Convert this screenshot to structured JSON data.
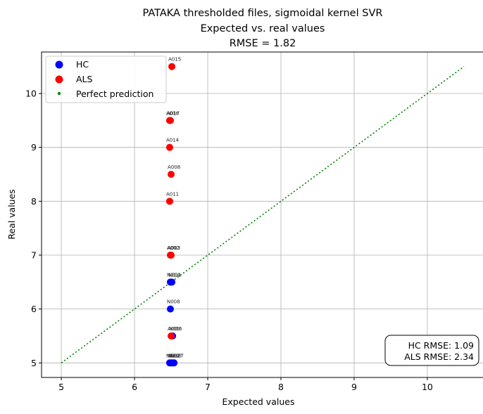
{
  "chart_data": {
    "type": "scatter",
    "title": [
      "PATAKA thresholded files, sigmoidal kernel SVR",
      "Expected vs. real values",
      "RMSE = 1.82"
    ],
    "xlabel": "Expected values",
    "ylabel": "Real values",
    "xlim": [
      4.73,
      10.77
    ],
    "ylim": [
      4.73,
      10.77
    ],
    "xticks": [
      5,
      6,
      7,
      8,
      9,
      10
    ],
    "yticks": [
      5,
      6,
      7,
      8,
      9,
      10
    ],
    "grid": true,
    "legend_position": "top-left",
    "series": [
      {
        "name": "HC",
        "color": "#0000ff",
        "points": [
          {
            "x": 6.51,
            "y": 6.5,
            "label": "N011"
          },
          {
            "x": 6.49,
            "y": 6.5,
            "label": "N014"
          },
          {
            "x": 6.49,
            "y": 6.0,
            "label": "N008"
          },
          {
            "x": 6.52,
            "y": 5.5,
            "label": "N016"
          },
          {
            "x": 6.5,
            "y": 5.0,
            "label": "N002"
          },
          {
            "x": 6.52,
            "y": 5.0,
            "label": "N007"
          },
          {
            "x": 6.48,
            "y": 5.0,
            "label": "N012"
          },
          {
            "x": 6.54,
            "y": 5.0,
            "label": "N017"
          }
        ]
      },
      {
        "name": "ALS",
        "color": "#ff0000",
        "points": [
          {
            "x": 6.51,
            "y": 10.5,
            "label": "A015"
          },
          {
            "x": 6.48,
            "y": 9.5,
            "label": "A016"
          },
          {
            "x": 6.49,
            "y": 9.5,
            "label": "A017"
          },
          {
            "x": 6.48,
            "y": 9.0,
            "label": "A014"
          },
          {
            "x": 6.5,
            "y": 8.5,
            "label": "A008"
          },
          {
            "x": 6.48,
            "y": 8.0,
            "label": "A011"
          },
          {
            "x": 6.49,
            "y": 7.0,
            "label": "A002"
          },
          {
            "x": 6.5,
            "y": 7.0,
            "label": "A003"
          },
          {
            "x": 6.5,
            "y": 5.5,
            "label": "A009"
          }
        ]
      },
      {
        "name": "Perfect prediction",
        "color": "#008000",
        "line": {
          "from": [
            5,
            5
          ],
          "to": [
            10.5,
            10.5
          ],
          "style": "dotted"
        }
      }
    ],
    "annotation": [
      "HC RMSE: 1.09",
      "ALS RMSE: 2.34"
    ]
  }
}
